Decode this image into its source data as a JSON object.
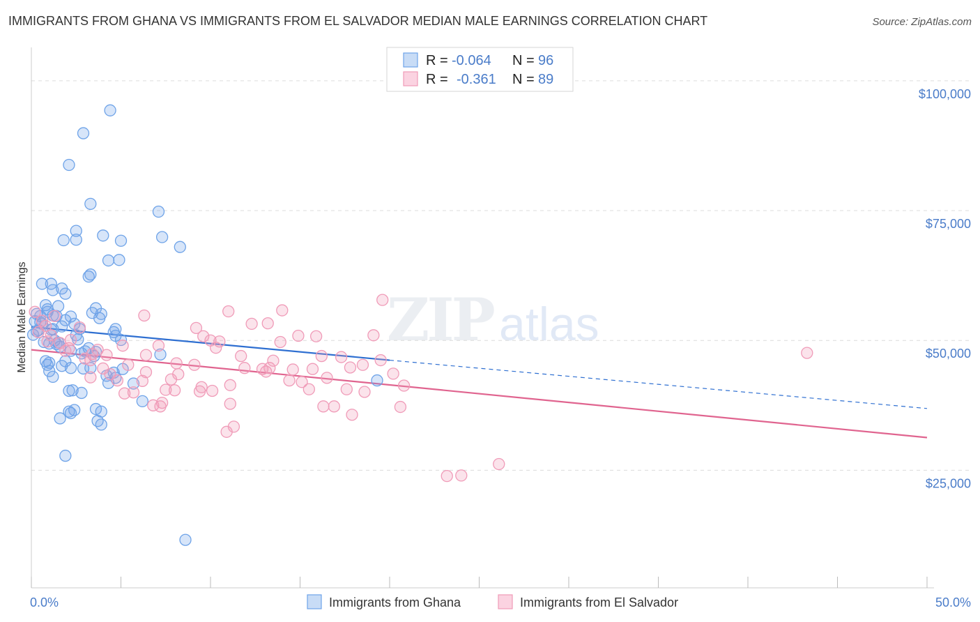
{
  "title": "IMMIGRANTS FROM GHANA VS IMMIGRANTS FROM EL SALVADOR MEDIAN MALE EARNINGS CORRELATION CHART",
  "source": "Source: ZipAtlas.com",
  "watermark": {
    "zip": "ZIP",
    "atlas": "atlas"
  },
  "legend_top": {
    "r_label": "R =",
    "n_label": "N =",
    "rows": [
      {
        "r": "-0.064",
        "n": "96",
        "color": "#6ea3e8"
      },
      {
        "r": "-0.361",
        "n": "89",
        "color": "#f09bb8"
      }
    ]
  },
  "chart_data": {
    "type": "scatter",
    "title": "IMMIGRANTS FROM GHANA VS IMMIGRANTS FROM EL SALVADOR MEDIAN MALE EARNINGS CORRELATION CHART",
    "xlabel": "",
    "ylabel": "Median Male Earnings",
    "xlim": [
      0,
      50
    ],
    "ylim": [
      2500,
      107500
    ],
    "x_ticks": [
      "0.0%",
      "50.0%"
    ],
    "y_ticks": [
      {
        "value": 100000,
        "label": "$100,000"
      },
      {
        "value": 75000,
        "label": "$75,000"
      },
      {
        "value": 50000,
        "label": "$50,000"
      },
      {
        "value": 25000,
        "label": "$25,000"
      }
    ],
    "grid": "horizontal dashed",
    "legend_position": "bottom",
    "series": [
      {
        "name": "Immigrants from Ghana",
        "color": "#6ea3e8",
        "line_color": "#2e6fd1",
        "trend": {
          "x0": 0,
          "y0": 52600,
          "x1": 20,
          "y1": 46200,
          "extend_x": 50,
          "extend_y": 36900
        },
        "points": [
          [
            4.4,
            94300
          ],
          [
            2.9,
            89900
          ],
          [
            2.1,
            83800
          ],
          [
            3.3,
            76300
          ],
          [
            7.1,
            74800
          ],
          [
            2.5,
            71100
          ],
          [
            4.0,
            70200
          ],
          [
            1.8,
            69300
          ],
          [
            2.5,
            69400
          ],
          [
            5.0,
            69200
          ],
          [
            7.3,
            69900
          ],
          [
            8.3,
            68000
          ],
          [
            4.3,
            65400
          ],
          [
            4.9,
            65500
          ],
          [
            3.2,
            62300
          ],
          [
            3.3,
            62700
          ],
          [
            0.6,
            60900
          ],
          [
            1.1,
            60900
          ],
          [
            1.2,
            59700
          ],
          [
            1.7,
            60000
          ],
          [
            1.9,
            59000
          ],
          [
            0.8,
            56800
          ],
          [
            1.5,
            56600
          ],
          [
            3.6,
            56200
          ],
          [
            0.3,
            55100
          ],
          [
            0.5,
            54700
          ],
          [
            0.9,
            55500
          ],
          [
            1.2,
            54800
          ],
          [
            1.4,
            54700
          ],
          [
            2.2,
            54600
          ],
          [
            3.8,
            54300
          ],
          [
            3.9,
            55100
          ],
          [
            0.2,
            53700
          ],
          [
            0.5,
            53500
          ],
          [
            0.6,
            53200
          ],
          [
            2.4,
            53200
          ],
          [
            1.7,
            52700
          ],
          [
            1.2,
            52200
          ],
          [
            4.7,
            52200
          ],
          [
            0.1,
            51100
          ],
          [
            2.5,
            51000
          ],
          [
            2.6,
            50200
          ],
          [
            4.7,
            50900
          ],
          [
            5.0,
            50100
          ],
          [
            1.3,
            50000
          ],
          [
            0.7,
            49700
          ],
          [
            1.0,
            49400
          ],
          [
            1.5,
            49600
          ],
          [
            3.2,
            48500
          ],
          [
            3.0,
            47900
          ],
          [
            2.8,
            47500
          ],
          [
            3.6,
            47800
          ],
          [
            7.2,
            47300
          ],
          [
            0.8,
            46000
          ],
          [
            1.9,
            46000
          ],
          [
            1.0,
            45700
          ],
          [
            0.9,
            45300
          ],
          [
            1.7,
            45100
          ],
          [
            3.3,
            44700
          ],
          [
            2.2,
            44700
          ],
          [
            2.9,
            44600
          ],
          [
            1.0,
            44100
          ],
          [
            4.6,
            43800
          ],
          [
            4.2,
            43200
          ],
          [
            1.2,
            43000
          ],
          [
            4.7,
            42800
          ],
          [
            4.3,
            41800
          ],
          [
            5.7,
            41700
          ],
          [
            19.3,
            42300
          ],
          [
            2.1,
            40300
          ],
          [
            2.3,
            40400
          ],
          [
            2.8,
            39900
          ],
          [
            6.2,
            38300
          ],
          [
            3.6,
            36800
          ],
          [
            2.4,
            36600
          ],
          [
            2.1,
            36300
          ],
          [
            2.2,
            36000
          ],
          [
            3.9,
            36300
          ],
          [
            1.6,
            35000
          ],
          [
            3.7,
            34500
          ],
          [
            3.9,
            33800
          ],
          [
            1.9,
            27800
          ],
          [
            8.6,
            11600
          ],
          [
            0.4,
            52000
          ],
          [
            1.9,
            53900
          ],
          [
            2.7,
            52200
          ],
          [
            3.4,
            55300
          ],
          [
            0.3,
            51800
          ],
          [
            1.1,
            52100
          ],
          [
            2.2,
            48000
          ],
          [
            1.4,
            49300
          ],
          [
            3.5,
            47000
          ],
          [
            5.1,
            44500
          ],
          [
            0.9,
            56000
          ],
          [
            1.6,
            48800
          ],
          [
            4.6,
            51600
          ]
        ]
      },
      {
        "name": "Immigrants from El Salvador",
        "color": "#f09bb8",
        "line_color": "#e0648f",
        "trend": {
          "x0": 0,
          "y0": 48200,
          "x1": 50,
          "y1": 31300
        },
        "points": [
          [
            0.2,
            55500
          ],
          [
            0.8,
            52800
          ],
          [
            1.3,
            54700
          ],
          [
            0.4,
            51600
          ],
          [
            1.6,
            49500
          ],
          [
            2.2,
            50100
          ],
          [
            2.1,
            48500
          ],
          [
            3.4,
            47400
          ],
          [
            3.7,
            48200
          ],
          [
            4.2,
            47200
          ],
          [
            3.3,
            46200
          ],
          [
            5.1,
            49000
          ],
          [
            6.4,
            47200
          ],
          [
            5.4,
            45300
          ],
          [
            7.1,
            49000
          ],
          [
            8.1,
            45600
          ],
          [
            9.1,
            45300
          ],
          [
            8.2,
            43500
          ],
          [
            6.4,
            43900
          ],
          [
            4.4,
            43500
          ],
          [
            3.3,
            42900
          ],
          [
            4.8,
            42300
          ],
          [
            6.2,
            42200
          ],
          [
            7.8,
            42500
          ],
          [
            9.5,
            41000
          ],
          [
            11.1,
            41400
          ],
          [
            9.4,
            40200
          ],
          [
            10.1,
            40300
          ],
          [
            7.5,
            40500
          ],
          [
            8.0,
            40400
          ],
          [
            5.7,
            40000
          ],
          [
            5.2,
            39800
          ],
          [
            6.8,
            37500
          ],
          [
            7.2,
            37300
          ],
          [
            7.3,
            38000
          ],
          [
            11.1,
            37800
          ],
          [
            10.9,
            32400
          ],
          [
            11.3,
            33400
          ],
          [
            6.3,
            54800
          ],
          [
            9.2,
            52400
          ],
          [
            9.6,
            50800
          ],
          [
            10.0,
            50000
          ],
          [
            10.3,
            48600
          ],
          [
            10.5,
            49800
          ],
          [
            11.0,
            55600
          ],
          [
            11.7,
            47000
          ],
          [
            11.9,
            44700
          ],
          [
            12.3,
            53200
          ],
          [
            12.9,
            44500
          ],
          [
            13.1,
            44000
          ],
          [
            13.2,
            53300
          ],
          [
            13.3,
            44700
          ],
          [
            13.5,
            46100
          ],
          [
            13.9,
            49700
          ],
          [
            14.0,
            55800
          ],
          [
            14.4,
            42300
          ],
          [
            14.9,
            50900
          ],
          [
            14.6,
            44400
          ],
          [
            15.1,
            42000
          ],
          [
            15.5,
            40600
          ],
          [
            15.7,
            44500
          ],
          [
            15.9,
            50800
          ],
          [
            16.2,
            47000
          ],
          [
            16.5,
            42800
          ],
          [
            16.3,
            37300
          ],
          [
            16.9,
            37300
          ],
          [
            17.3,
            46800
          ],
          [
            17.6,
            40600
          ],
          [
            17.8,
            44800
          ],
          [
            17.9,
            35700
          ],
          [
            18.5,
            45300
          ],
          [
            18.6,
            40100
          ],
          [
            19.1,
            51000
          ],
          [
            19.5,
            46200
          ],
          [
            19.6,
            57800
          ],
          [
            20.2,
            43600
          ],
          [
            20.6,
            37200
          ],
          [
            20.8,
            41300
          ],
          [
            23.2,
            23900
          ],
          [
            24.0,
            24000
          ],
          [
            26.1,
            26200
          ],
          [
            43.3,
            47600
          ],
          [
            0.6,
            53800
          ],
          [
            1.1,
            51000
          ],
          [
            1.9,
            48000
          ],
          [
            3.0,
            46500
          ],
          [
            4.0,
            44600
          ],
          [
            2.7,
            52500
          ],
          [
            0.9,
            49800
          ]
        ]
      }
    ]
  }
}
